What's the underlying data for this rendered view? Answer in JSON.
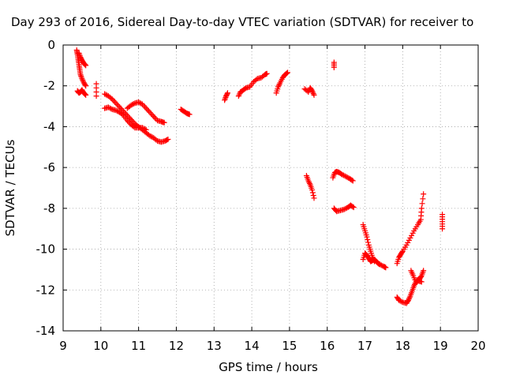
{
  "chart_data": {
    "type": "scatter",
    "title": "Day 293 of 2016, Sidereal Day-to-day VTEC variation (SDTVAR) for receiver to",
    "xlabel": "GPS time / hours",
    "ylabel": "SDTVAR / TECUs",
    "xlim": [
      9,
      20
    ],
    "ylim": [
      -14,
      0
    ],
    "x_ticks": [
      9,
      10,
      11,
      12,
      13,
      14,
      15,
      16,
      17,
      18,
      19,
      20
    ],
    "y_ticks": [
      0,
      -2,
      -4,
      -6,
      -8,
      -10,
      -12,
      -14
    ],
    "grid": true,
    "marker": "+",
    "series_color": "#ff0000",
    "series": [
      {
        "name": "SDTVAR",
        "segments": [
          [
            [
              9.36,
              -0.25
            ],
            [
              9.38,
              -0.45
            ],
            [
              9.4,
              -0.7
            ],
            [
              9.42,
              -0.95
            ],
            [
              9.44,
              -1.2
            ],
            [
              9.46,
              -1.45
            ],
            [
              9.5,
              -1.65
            ],
            [
              9.55,
              -1.85
            ],
            [
              9.6,
              -2.0
            ]
          ],
          [
            [
              9.42,
              -0.4
            ],
            [
              9.46,
              -0.6
            ],
            [
              9.5,
              -0.75
            ],
            [
              9.55,
              -0.9
            ],
            [
              9.6,
              -1.0
            ]
          ],
          [
            [
              9.38,
              -2.25
            ],
            [
              9.42,
              -2.35
            ],
            [
              9.46,
              -2.3
            ],
            [
              9.5,
              -2.2
            ],
            [
              9.55,
              -2.35
            ],
            [
              9.6,
              -2.45
            ]
          ],
          [
            [
              9.88,
              -1.9
            ],
            [
              9.88,
              -2.5
            ]
          ],
          [
            [
              10.1,
              -2.4
            ],
            [
              10.2,
              -2.5
            ],
            [
              10.3,
              -2.65
            ],
            [
              10.4,
              -2.85
            ],
            [
              10.5,
              -3.05
            ],
            [
              10.6,
              -3.25
            ],
            [
              10.7,
              -3.45
            ],
            [
              10.8,
              -3.65
            ],
            [
              10.9,
              -3.85
            ],
            [
              11.0,
              -4.0
            ],
            [
              11.1,
              -4.15
            ],
            [
              11.2,
              -4.3
            ],
            [
              11.3,
              -4.45
            ],
            [
              11.4,
              -4.55
            ],
            [
              11.5,
              -4.7
            ],
            [
              11.6,
              -4.75
            ],
            [
              11.7,
              -4.7
            ],
            [
              11.78,
              -4.62
            ]
          ],
          [
            [
              10.1,
              -3.1
            ],
            [
              10.2,
              -3.05
            ],
            [
              10.3,
              -3.15
            ],
            [
              10.4,
              -3.2
            ],
            [
              10.5,
              -3.3
            ],
            [
              10.6,
              -3.45
            ],
            [
              10.7,
              -3.7
            ],
            [
              10.8,
              -3.9
            ],
            [
              10.9,
              -4.05
            ],
            [
              11.0,
              -4.05
            ],
            [
              11.1,
              -4.05
            ],
            [
              11.2,
              -4.15
            ]
          ],
          [
            [
              10.7,
              -3.1
            ],
            [
              10.8,
              -2.95
            ],
            [
              10.9,
              -2.85
            ],
            [
              11.0,
              -2.8
            ],
            [
              11.1,
              -2.9
            ],
            [
              11.2,
              -3.1
            ],
            [
              11.3,
              -3.3
            ],
            [
              11.4,
              -3.5
            ],
            [
              11.5,
              -3.7
            ],
            [
              11.6,
              -3.75
            ],
            [
              11.68,
              -3.8
            ]
          ],
          [
            [
              12.12,
              -3.15
            ],
            [
              12.2,
              -3.25
            ],
            [
              12.28,
              -3.35
            ],
            [
              12.35,
              -3.4
            ]
          ],
          [
            [
              13.28,
              -2.7
            ],
            [
              13.32,
              -2.5
            ],
            [
              13.36,
              -2.35
            ]
          ],
          [
            [
              13.65,
              -2.5
            ],
            [
              13.7,
              -2.3
            ],
            [
              13.78,
              -2.2
            ],
            [
              13.85,
              -2.1
            ],
            [
              13.95,
              -2.05
            ],
            [
              14.05,
              -1.8
            ],
            [
              14.15,
              -1.65
            ],
            [
              14.25,
              -1.6
            ],
            [
              14.35,
              -1.45
            ],
            [
              14.4,
              -1.4
            ]
          ],
          [
            [
              14.65,
              -2.35
            ],
            [
              14.7,
              -2.05
            ],
            [
              14.75,
              -1.85
            ],
            [
              14.82,
              -1.6
            ],
            [
              14.88,
              -1.45
            ],
            [
              14.95,
              -1.35
            ]
          ],
          [
            [
              15.4,
              -2.15
            ],
            [
              15.5,
              -2.3
            ],
            [
              15.55,
              -2.1
            ],
            [
              15.6,
              -2.25
            ],
            [
              15.65,
              -2.45
            ]
          ],
          [
            [
              15.45,
              -6.4
            ],
            [
              15.5,
              -6.65
            ],
            [
              15.55,
              -6.85
            ],
            [
              15.6,
              -7.1
            ],
            [
              15.65,
              -7.5
            ]
          ],
          [
            [
              16.18,
              -0.85
            ],
            [
              16.18,
              -1.1
            ]
          ],
          [
            [
              16.15,
              -6.5
            ],
            [
              16.2,
              -6.25
            ],
            [
              16.25,
              -6.2
            ],
            [
              16.32,
              -6.25
            ],
            [
              16.4,
              -6.35
            ],
            [
              16.5,
              -6.45
            ],
            [
              16.6,
              -6.55
            ],
            [
              16.68,
              -6.65
            ]
          ],
          [
            [
              16.18,
              -8.0
            ],
            [
              16.25,
              -8.15
            ],
            [
              16.35,
              -8.1
            ],
            [
              16.45,
              -8.05
            ],
            [
              16.55,
              -7.95
            ],
            [
              16.62,
              -7.85
            ],
            [
              16.7,
              -7.95
            ]
          ],
          [
            [
              16.95,
              -8.8
            ],
            [
              17.0,
              -9.1
            ],
            [
              17.05,
              -9.4
            ],
            [
              17.1,
              -9.8
            ],
            [
              17.15,
              -10.1
            ],
            [
              17.2,
              -10.4
            ],
            [
              17.25,
              -10.6
            ]
          ],
          [
            [
              16.95,
              -10.5
            ],
            [
              17.0,
              -10.2
            ],
            [
              17.05,
              -10.3
            ],
            [
              17.1,
              -10.45
            ],
            [
              17.15,
              -10.6
            ],
            [
              17.2,
              -10.55
            ],
            [
              17.25,
              -10.5
            ],
            [
              17.3,
              -10.6
            ],
            [
              17.35,
              -10.7
            ],
            [
              17.4,
              -10.75
            ],
            [
              17.5,
              -10.85
            ],
            [
              17.55,
              -10.9
            ]
          ],
          [
            [
              17.85,
              -10.7
            ],
            [
              17.9,
              -10.4
            ],
            [
              17.95,
              -10.25
            ],
            [
              18.0,
              -10.1
            ],
            [
              18.1,
              -9.8
            ],
            [
              18.2,
              -9.45
            ],
            [
              18.3,
              -9.1
            ],
            [
              18.4,
              -8.8
            ],
            [
              18.48,
              -8.55
            ],
            [
              18.5,
              -8.0
            ],
            [
              18.55,
              -7.3
            ]
          ],
          [
            [
              17.85,
              -12.35
            ],
            [
              17.9,
              -12.5
            ],
            [
              18.0,
              -12.6
            ],
            [
              18.1,
              -12.65
            ],
            [
              18.15,
              -12.5
            ],
            [
              18.2,
              -12.3
            ],
            [
              18.25,
              -12.05
            ],
            [
              18.3,
              -11.8
            ],
            [
              18.35,
              -11.6
            ],
            [
              18.4,
              -11.5
            ],
            [
              18.45,
              -11.45
            ],
            [
              18.5,
              -11.3
            ],
            [
              18.55,
              -11.05
            ]
          ],
          [
            [
              18.22,
              -11.05
            ],
            [
              18.28,
              -11.3
            ],
            [
              18.35,
              -11.6
            ],
            [
              18.42,
              -11.55
            ],
            [
              18.5,
              -11.6
            ]
          ],
          [
            [
              19.05,
              -8.3
            ],
            [
              19.05,
              -8.65
            ],
            [
              19.05,
              -9.0
            ]
          ]
        ]
      }
    ]
  }
}
